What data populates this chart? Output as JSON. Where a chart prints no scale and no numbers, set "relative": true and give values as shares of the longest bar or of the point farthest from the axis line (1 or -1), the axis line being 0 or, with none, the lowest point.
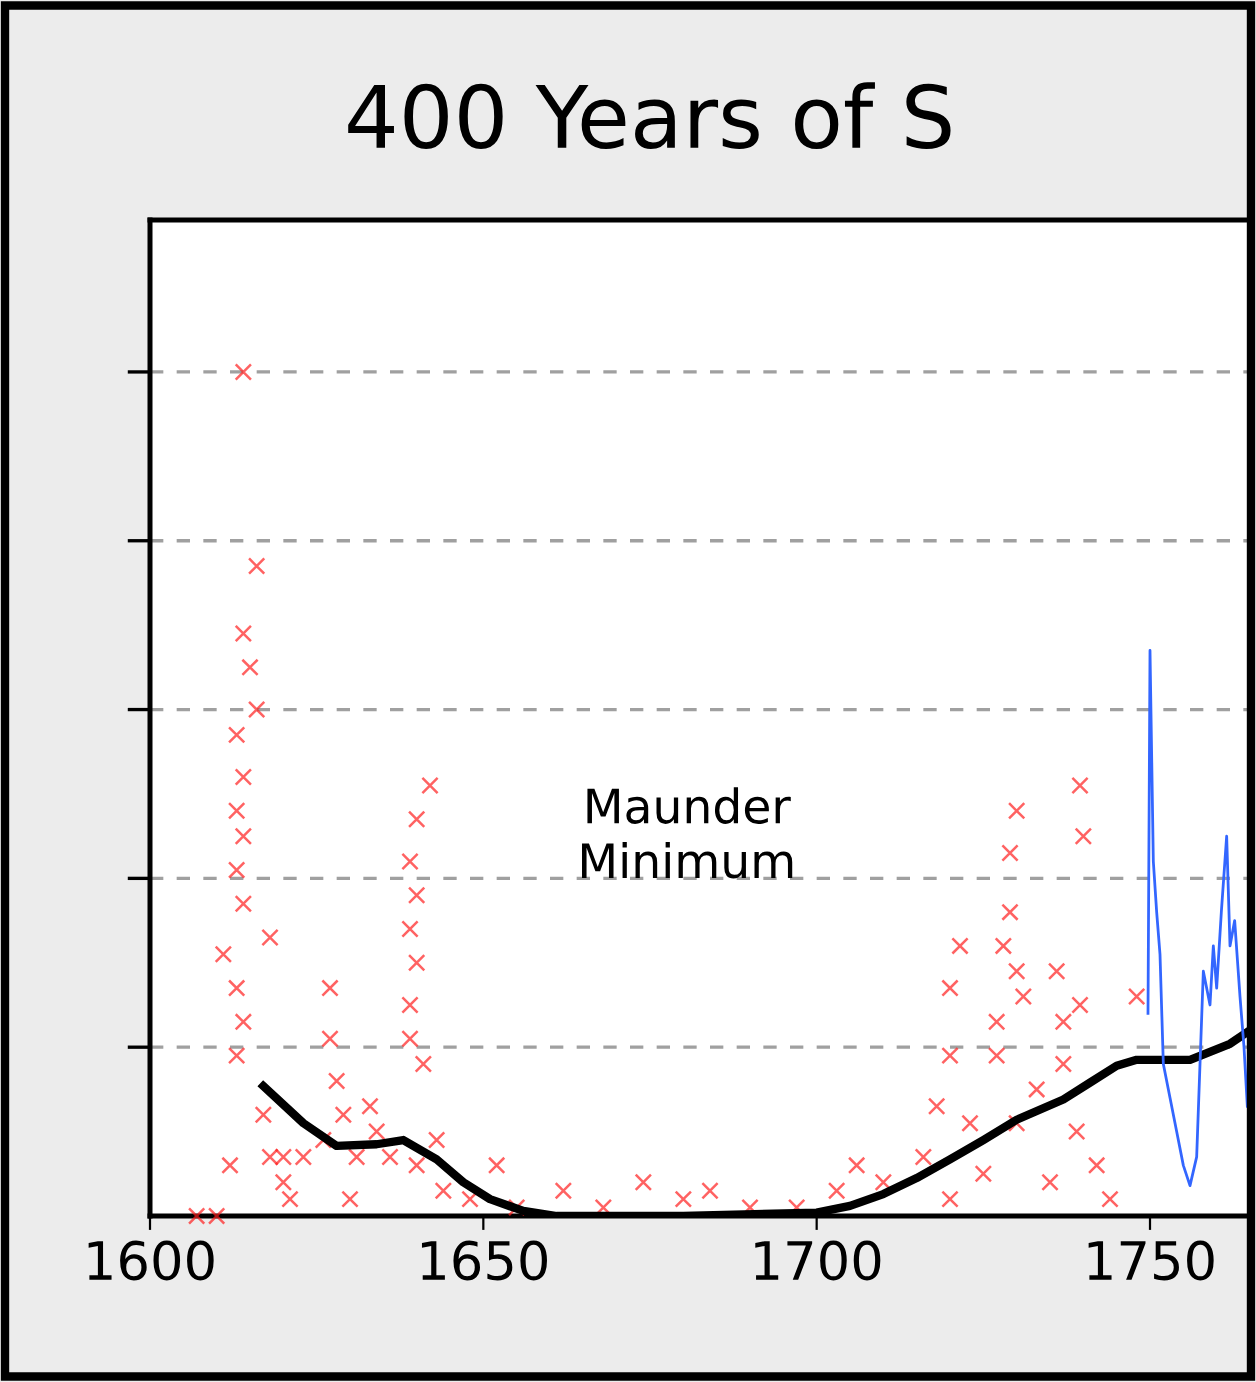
{
  "chart_data": {
    "type": "scatter",
    "title": "400 Years of S",
    "relative": true,
    "annotations": [
      "Maunder\nMinimum"
    ],
    "xlim": [
      1600,
      1765
    ],
    "xticks": [
      1600,
      1650,
      1700,
      1750
    ],
    "grid": "y",
    "legend": false,
    "series": [
      {
        "marker": "cross",
        "color": "#ff2020",
        "x": [
          1614,
          1616,
          1614,
          1615,
          1616,
          1613,
          1614,
          1613,
          1614,
          1613,
          1614,
          1611,
          1618,
          1613,
          1614,
          1613,
          1617,
          1612,
          1620,
          1610,
          1607,
          1627,
          1627,
          1628,
          1629,
          1626,
          1631,
          1623,
          1620,
          1618,
          1636,
          1634,
          1640,
          1621,
          1630,
          1633,
          1640,
          1639,
          1640,
          1639,
          1640,
          1639,
          1639,
          1641,
          1642,
          1643,
          1644,
          1652,
          1648,
          1655,
          1662,
          1668,
          1674,
          1680,
          1684,
          1690,
          1697,
          1703,
          1706,
          1710,
          1739.5,
          1740,
          1730,
          1729,
          1729,
          1721.5,
          1720,
          1728,
          1730,
          1736,
          1731,
          1739.5,
          1748,
          1727,
          1737,
          1720,
          1727,
          1737,
          1733,
          1718,
          1723,
          1730,
          1739,
          1742,
          1716,
          1725,
          1735,
          1744,
          1720
        ],
        "values": [
          1.0,
          0.77,
          0.69,
          0.65,
          0.6,
          0.57,
          0.52,
          0.48,
          0.45,
          0.41,
          0.37,
          0.31,
          0.33,
          0.27,
          0.23,
          0.19,
          0.12,
          0.06,
          0.04,
          0.0,
          0.0,
          0.27,
          0.21,
          0.16,
          0.12,
          0.09,
          0.07,
          0.07,
          0.07,
          0.07,
          0.07,
          0.1,
          0.06,
          0.02,
          0.02,
          0.13,
          0.47,
          0.42,
          0.38,
          0.34,
          0.3,
          0.25,
          0.21,
          0.18,
          0.51,
          0.09,
          0.03,
          0.06,
          0.02,
          0.01,
          0.03,
          0.01,
          0.04,
          0.02,
          0.03,
          0.01,
          0.01,
          0.03,
          0.06,
          0.04,
          0.51,
          0.45,
          0.48,
          0.43,
          0.36,
          0.32,
          0.27,
          0.32,
          0.29,
          0.29,
          0.26,
          0.25,
          0.26,
          0.23,
          0.23,
          0.19,
          0.19,
          0.18,
          0.15,
          0.13,
          0.11,
          0.11,
          0.1,
          0.06,
          0.07,
          0.05,
          0.04,
          0.02,
          0.02
        ]
      },
      {
        "type": "line",
        "marker": "none",
        "line_style": "solid",
        "color": "#3366ff",
        "x": [
          1749.7,
          1750,
          1750.5,
          1751,
          1751.5,
          1752,
          1753,
          1754,
          1755,
          1756,
          1757,
          1758,
          1759,
          1759.5,
          1760,
          1760.7,
          1761.5,
          1762,
          1762.7,
          1763.5,
          1764.1,
          1764.6
        ],
        "values": [
          0.24,
          0.67,
          0.42,
          0.36,
          0.31,
          0.18,
          0.14,
          0.1,
          0.06,
          0.036,
          0.07,
          0.29,
          0.25,
          0.32,
          0.27,
          0.36,
          0.45,
          0.32,
          0.35,
          0.26,
          0.2,
          0.13
        ]
      },
      {
        "type": "line",
        "marker": "none",
        "line_style": "solid",
        "color": "#000000",
        "x": [
          1617,
          1623,
          1628,
          1634,
          1638,
          1643,
          1647,
          1651,
          1656,
          1661,
          1680,
          1700,
          1705,
          1710,
          1715,
          1720,
          1725,
          1730,
          1737,
          1741,
          1745,
          1748,
          1756,
          1762,
          1765
        ],
        "values": [
          0.154,
          0.11,
          0.083,
          0.085,
          0.09,
          0.067,
          0.04,
          0.02,
          0.006,
          0.0,
          0.0,
          0.004,
          0.012,
          0.026,
          0.045,
          0.067,
          0.09,
          0.114,
          0.138,
          0.158,
          0.178,
          0.185,
          0.185,
          0.204,
          0.22
        ]
      }
    ]
  }
}
